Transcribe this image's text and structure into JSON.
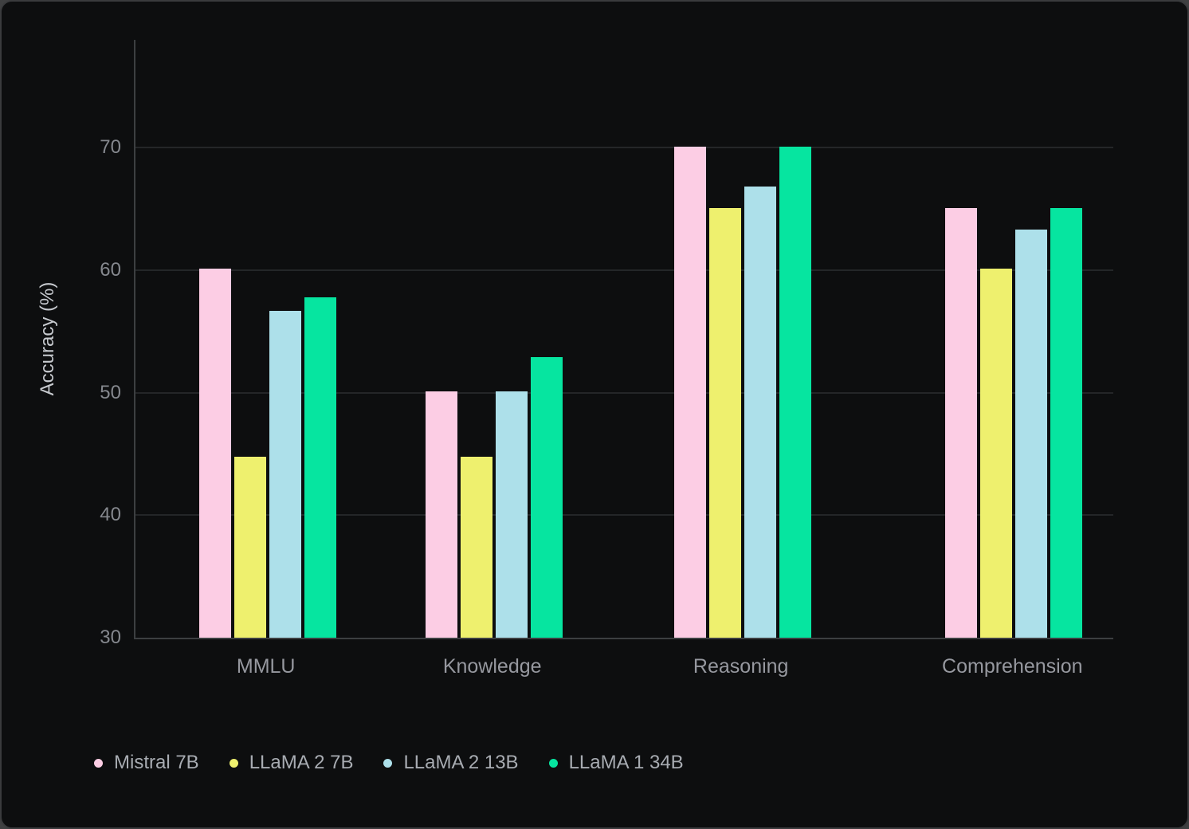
{
  "chart_data": {
    "type": "bar",
    "title": "",
    "xlabel": "",
    "ylabel": "Accuracy (%)",
    "ylim": [
      30,
      78.8
    ],
    "yticks": [
      30,
      40,
      50,
      60,
      70
    ],
    "grid": "horizontal",
    "legend_position": "bottom-left",
    "categories": [
      "MMLU",
      "Knowledge",
      "Reasoning",
      "Comprehension"
    ],
    "series": [
      {
        "name": "Mistral 7B",
        "color": "#FCCDE4",
        "values": [
          60.1,
          50.1,
          70.1,
          65.1
        ]
      },
      {
        "name": "LLaMA 2 7B",
        "color": "#EEF06E",
        "values": [
          44.8,
          44.8,
          65.1,
          60.1
        ]
      },
      {
        "name": "LLaMA 2 13B",
        "color": "#ADE0EA",
        "values": [
          56.7,
          50.1,
          66.8,
          63.3
        ]
      },
      {
        "name": "LLaMA 1 34B",
        "color": "#06E5A0",
        "values": [
          57.8,
          52.9,
          70.1,
          65.1
        ]
      }
    ]
  }
}
